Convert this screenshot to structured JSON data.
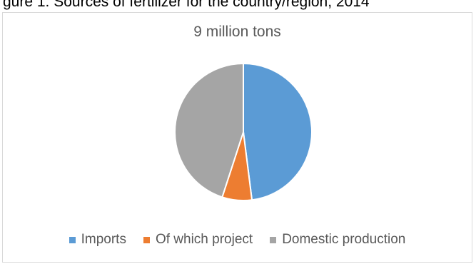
{
  "header": {
    "caption_cut": "gure 1: Sources of fertilizer for the country/region, 2014"
  },
  "chart_data": {
    "type": "pie",
    "title": "9 million tons",
    "categories": [
      "Imports",
      "Of which project",
      "Domestic production"
    ],
    "values": [
      48,
      7,
      45
    ],
    "colors": [
      "#5b9bd5",
      "#ed7d31",
      "#a5a5a5"
    ],
    "legend_position": "bottom"
  }
}
